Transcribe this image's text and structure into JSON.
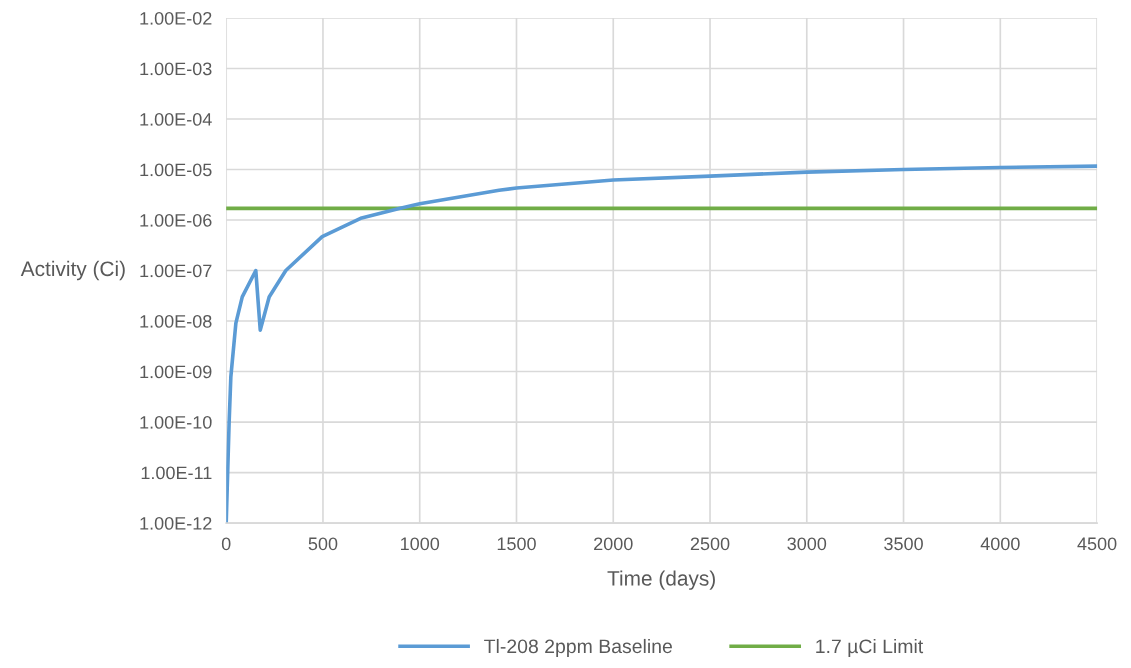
{
  "chart_data": {
    "type": "line",
    "xlabel": "Time (days)",
    "ylabel": "Activity (Ci)",
    "log": "y",
    "xlim": [
      0,
      4500
    ],
    "xticks": [
      0,
      500,
      1000,
      1500,
      2000,
      2500,
      3000,
      3500,
      4000,
      4500
    ],
    "ylim": [
      1e-12,
      0.01
    ],
    "yticks": [
      {
        "value": 1e-12,
        "label": "1.00E-12"
      },
      {
        "value": 1e-11,
        "label": "1.00E-11"
      },
      {
        "value": 1e-10,
        "label": "1.00E-10"
      },
      {
        "value": 1e-09,
        "label": "1.00E-09"
      },
      {
        "value": 1e-08,
        "label": "1.00E-08"
      },
      {
        "value": 1e-07,
        "label": "1.00E-07"
      },
      {
        "value": 1e-06,
        "label": "1.00E-06"
      },
      {
        "value": 1e-05,
        "label": "1.00E-05"
      },
      {
        "value": 0.0001,
        "label": "1.00E-04"
      },
      {
        "value": 0.001,
        "label": "1.00E-03"
      },
      {
        "value": 0.01,
        "label": "1.00E-02"
      }
    ],
    "series": [
      {
        "name": "Tl-208 2ppm Baseline",
        "color": "#5b9bd5",
        "x": [
          0,
          15,
          24,
          50,
          83,
          153,
          176,
          222,
          308,
          496,
          700,
          894,
          1000,
          1410,
          1500,
          2000,
          2500,
          3000,
          3500,
          4000,
          4500
        ],
        "values": [
          1e-12,
          9.5e-11,
          7.9e-10,
          9.1e-09,
          3e-08,
          1e-07,
          6.6e-09,
          3e-08,
          1e-07,
          4.7e-07,
          1.1e-06,
          1.7e-06,
          2.1e-06,
          3.9e-06,
          4.3e-06,
          6.2e-06,
          7.4e-06,
          8.9e-06,
          1e-05,
          1.1e-05,
          1.17e-05
        ]
      }
    ],
    "ref_lines": [
      {
        "axis": "y",
        "value": 1.7e-06,
        "label": "1.7 µCi Limit",
        "color": "#70ad47"
      }
    ],
    "grid": true,
    "legend": "bottom",
    "marker": "none",
    "line_style": "solid"
  }
}
